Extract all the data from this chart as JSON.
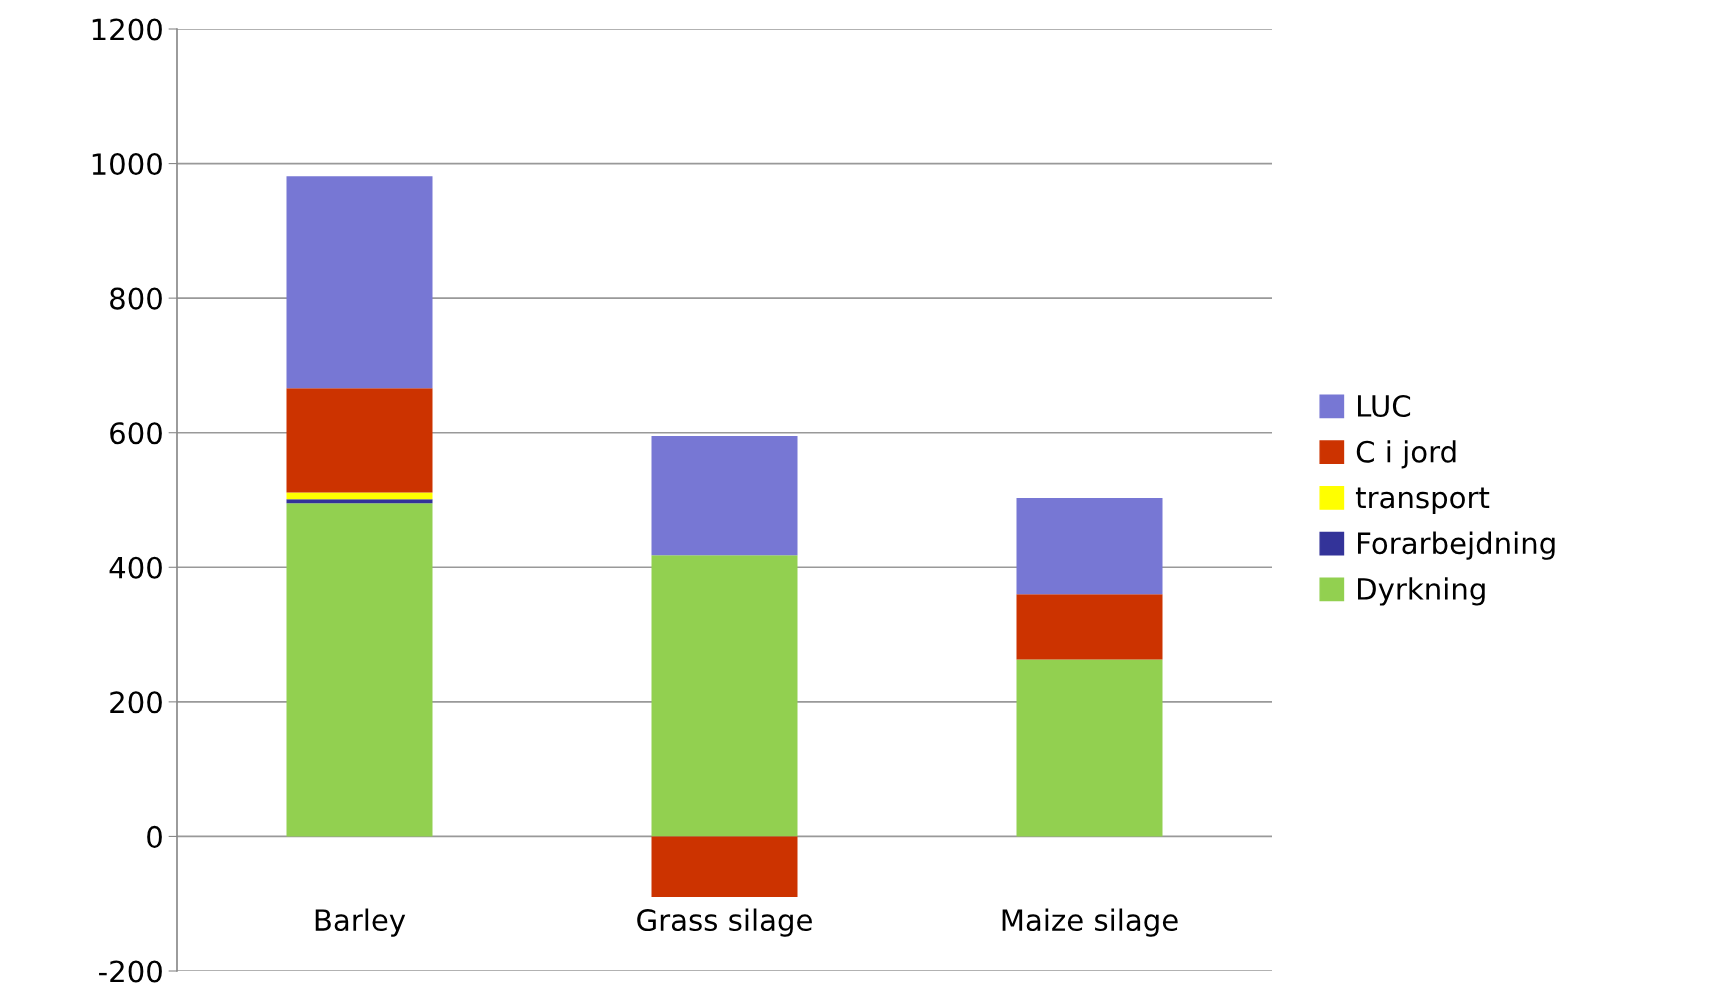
{
  "chart_data": {
    "type": "bar",
    "stacked": true,
    "categories": [
      "Barley",
      "Grass silage",
      "Maize silage"
    ],
    "series": [
      {
        "name": "Dyrkning",
        "color": "#92d050",
        "values": [
          495,
          418,
          263
        ]
      },
      {
        "name": "Forarbejdning",
        "color": "#333399",
        "values": [
          6,
          null,
          null
        ]
      },
      {
        "name": "transport",
        "color": "#ffff00",
        "values": [
          10,
          null,
          null
        ]
      },
      {
        "name": "C i jord",
        "color": "#cc3300",
        "values": [
          155,
          -90,
          97
        ]
      },
      {
        "name": "LUC",
        "color": "#7777d4",
        "values": [
          315,
          177,
          143
        ]
      }
    ],
    "ylim": [
      -200,
      1200
    ],
    "yticks": [
      -200,
      0,
      200,
      400,
      600,
      800,
      1000,
      1200
    ],
    "grid": "y",
    "legend": "right"
  }
}
